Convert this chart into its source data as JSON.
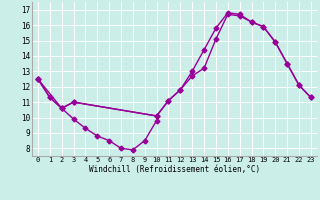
{
  "xlabel": "Windchill (Refroidissement éolien,°C)",
  "bg_color": "#cceee8",
  "grid_color": "#ffffff",
  "line_color": "#990099",
  "marker": "D",
  "markersize": 2.5,
  "linewidth": 1.0,
  "x_ticks": [
    0,
    1,
    2,
    3,
    4,
    5,
    6,
    7,
    8,
    9,
    10,
    11,
    12,
    13,
    14,
    15,
    16,
    17,
    18,
    19,
    20,
    21,
    22,
    23
  ],
  "y_ticks": [
    8,
    9,
    10,
    11,
    12,
    13,
    14,
    15,
    16,
    17
  ],
  "ylim": [
    7.5,
    17.5
  ],
  "xlim": [
    -0.5,
    23.5
  ],
  "curve1_x": [
    0,
    1,
    2,
    3,
    4,
    5,
    6,
    7,
    8,
    9,
    10
  ],
  "curve1_y": [
    12.5,
    11.3,
    10.6,
    9.9,
    9.3,
    8.8,
    8.5,
    8.0,
    7.9,
    8.5,
    9.8
  ],
  "curve2_x": [
    0,
    1,
    2,
    3,
    10,
    11,
    12,
    13,
    14,
    15,
    16,
    17,
    18,
    19,
    20,
    21,
    22,
    23
  ],
  "curve2_y": [
    12.5,
    11.3,
    10.6,
    11.0,
    10.1,
    11.1,
    11.8,
    12.7,
    13.2,
    15.1,
    16.7,
    16.6,
    16.2,
    15.9,
    14.9,
    13.5,
    12.1,
    11.3
  ],
  "curve3_x": [
    0,
    2,
    3,
    10,
    11,
    12,
    13,
    14,
    15,
    16,
    17,
    18,
    19,
    20,
    21,
    22,
    23
  ],
  "curve3_y": [
    12.5,
    10.6,
    11.0,
    10.1,
    11.1,
    11.8,
    13.0,
    14.4,
    15.8,
    16.8,
    16.7,
    16.2,
    15.9,
    14.9,
    13.5,
    12.1,
    11.3
  ]
}
